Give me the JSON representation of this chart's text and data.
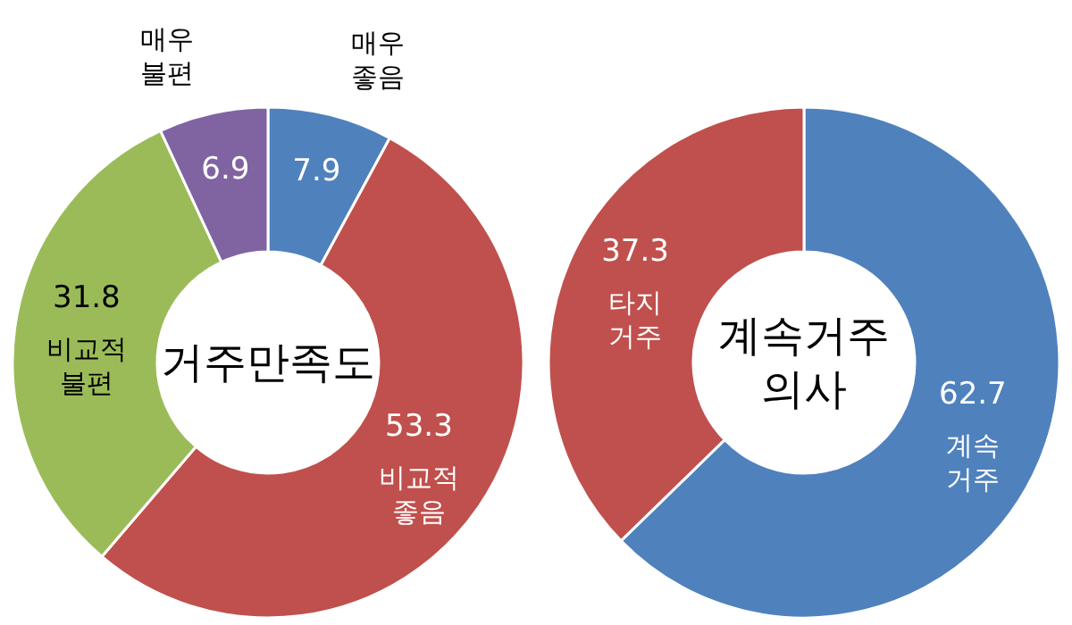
{
  "chart_data": [
    {
      "type": "donut",
      "title": "거주만족도",
      "categories": [
        "매우 좋음",
        "비교적 좋음",
        "비교적 불편",
        "매우 불편"
      ],
      "values": [
        7.9,
        53.3,
        31.8,
        6.9
      ],
      "colors": [
        "#4f81bd",
        "#c0504d",
        "#9bbb59",
        "#8064a2"
      ],
      "data_labels": true,
      "legend": false
    },
    {
      "type": "donut",
      "title": "계속거주 의사",
      "categories": [
        "계속 거주",
        "타지 거주"
      ],
      "values": [
        62.7,
        37.3
      ],
      "colors": [
        "#4f81bd",
        "#c0504d"
      ],
      "data_labels": true,
      "legend": false
    }
  ]
}
